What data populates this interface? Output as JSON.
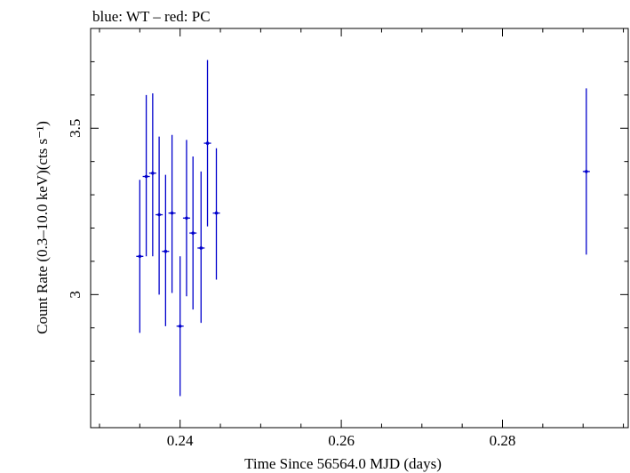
{
  "chart_data": {
    "type": "scatter",
    "title": "blue: WT – red: PC",
    "xlabel": "Time Since 56564.0 MJD (days)",
    "ylabel": "Count Rate (0.3–10.0 keV)(cts s⁻¹)",
    "xlim": [
      0.2289,
      0.2956
    ],
    "ylim": [
      2.6,
      3.8
    ],
    "xticks": [
      {
        "value": 0.24,
        "label": "0.24"
      },
      {
        "value": 0.26,
        "label": "0.26"
      },
      {
        "value": 0.28,
        "label": "0.28"
      }
    ],
    "yticks": [
      {
        "value": 3.0,
        "label": "3"
      },
      {
        "value": 3.5,
        "label": "3.5"
      }
    ],
    "series": [
      {
        "name": "WT",
        "color": "#0000cc",
        "points": [
          {
            "x": 0.235,
            "y": 3.115,
            "ylo": 2.885,
            "yhi": 3.345
          },
          {
            "x": 0.2358,
            "y": 3.355,
            "ylo": 3.115,
            "yhi": 3.6
          },
          {
            "x": 0.2366,
            "y": 3.365,
            "ylo": 3.115,
            "yhi": 3.605
          },
          {
            "x": 0.2374,
            "y": 3.24,
            "ylo": 3.0,
            "yhi": 3.475
          },
          {
            "x": 0.2382,
            "y": 3.13,
            "ylo": 2.905,
            "yhi": 3.36
          },
          {
            "x": 0.239,
            "y": 3.245,
            "ylo": 3.005,
            "yhi": 3.48
          },
          {
            "x": 0.24,
            "y": 2.905,
            "ylo": 2.695,
            "yhi": 3.115
          },
          {
            "x": 0.2408,
            "y": 3.23,
            "ylo": 2.995,
            "yhi": 3.465
          },
          {
            "x": 0.2416,
            "y": 3.185,
            "ylo": 2.955,
            "yhi": 3.415
          },
          {
            "x": 0.2426,
            "y": 3.14,
            "ylo": 2.915,
            "yhi": 3.37
          },
          {
            "x": 0.2434,
            "y": 3.455,
            "ylo": 3.205,
            "yhi": 3.705
          },
          {
            "x": 0.2445,
            "y": 3.245,
            "ylo": 3.045,
            "yhi": 3.44
          },
          {
            "x": 0.2904,
            "y": 3.37,
            "ylo": 3.12,
            "yhi": 3.62
          }
        ]
      }
    ]
  }
}
